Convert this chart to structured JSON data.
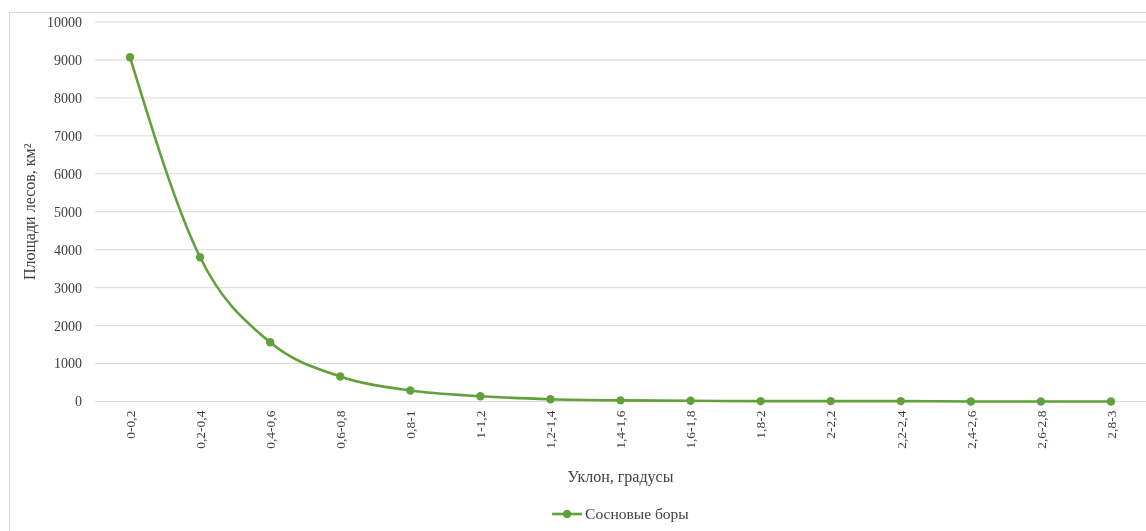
{
  "chart_data": {
    "type": "line",
    "xlabel": "Уклон, градусы",
    "ylabel": "Площади лесов, км²",
    "categories": [
      "0-0,2",
      "0,2-0,4",
      "0,4-0,6",
      "0,6-0,8",
      "0,8-1",
      "1-1,2",
      "1,2-1,4",
      "1,4-1,6",
      "1,6-1,8",
      "1,8-2",
      "2-2,2",
      "2,2-2,4",
      "2,4-2,6",
      "2,6-2,8",
      "2,8-3"
    ],
    "series": [
      {
        "name": "Сосновые боры",
        "color": "#62a03c",
        "values": [
          9070,
          3800,
          1560,
          660,
          290,
          140,
          60,
          30,
          20,
          10,
          10,
          10,
          0,
          0,
          0
        ]
      }
    ],
    "ylim": [
      0,
      10000
    ],
    "yticks": [
      0,
      1000,
      2000,
      3000,
      4000,
      5000,
      6000,
      7000,
      8000,
      9000,
      10000
    ],
    "grid": "y",
    "legend": "bottom",
    "marker": "circle"
  }
}
